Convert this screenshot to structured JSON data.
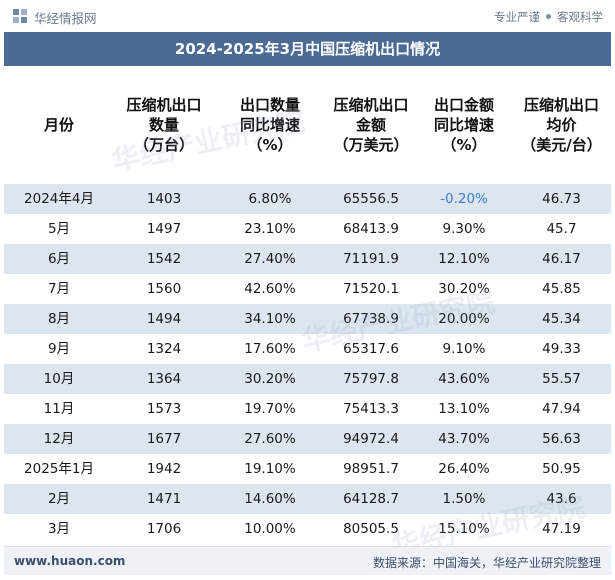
{
  "header": {
    "site_name": "华经情报网",
    "tagline_left": "专业严谨",
    "tagline_right": "客观科学"
  },
  "title": "2024-2025年3月中国压缩机出口情况",
  "columns": [
    "月份",
    "压缩机出口\n数量\n（万台）",
    "出口数量\n同比增速\n（%）",
    "压缩机出口\n金额\n（万美元）",
    "出口金额\n同比增速\n（%）",
    "压缩机出口\n均价\n（美元/台）"
  ],
  "rows": [
    [
      "2024年4月",
      "1403",
      "6.80%",
      "65556.5",
      "-0.20%",
      "46.73"
    ],
    [
      "5月",
      "1497",
      "23.10%",
      "68413.9",
      "9.30%",
      "45.7"
    ],
    [
      "6月",
      "1542",
      "27.40%",
      "71191.9",
      "12.10%",
      "46.17"
    ],
    [
      "7月",
      "1560",
      "42.60%",
      "71520.1",
      "30.20%",
      "45.85"
    ],
    [
      "8月",
      "1494",
      "34.10%",
      "67738.9",
      "20.00%",
      "45.34"
    ],
    [
      "9月",
      "1324",
      "17.60%",
      "65317.6",
      "9.10%",
      "49.33"
    ],
    [
      "10月",
      "1364",
      "30.20%",
      "75797.8",
      "43.60%",
      "55.57"
    ],
    [
      "11月",
      "1573",
      "19.70%",
      "75413.3",
      "13.10%",
      "47.94"
    ],
    [
      "12月",
      "1677",
      "27.60%",
      "94972.4",
      "43.70%",
      "56.63"
    ],
    [
      "2025年1月",
      "1942",
      "19.10%",
      "98951.7",
      "26.40%",
      "50.95"
    ],
    [
      "2月",
      "1471",
      "14.60%",
      "64128.7",
      "1.50%",
      "43.6"
    ],
    [
      "3月",
      "1706",
      "10.00%",
      "80505.5",
      "15.10%",
      "47.19"
    ]
  ],
  "footer": {
    "url": "www.huaon.com",
    "source": "数据来源：中国海关，华经产业研究院整理"
  },
  "watermark": "华经产业研究院",
  "colors": {
    "title_bg": "#4b6b94",
    "row_shade": "#dde5f0",
    "negative": "#3d7fcf"
  },
  "icons": {
    "logo": "huajing-logo-icon"
  }
}
